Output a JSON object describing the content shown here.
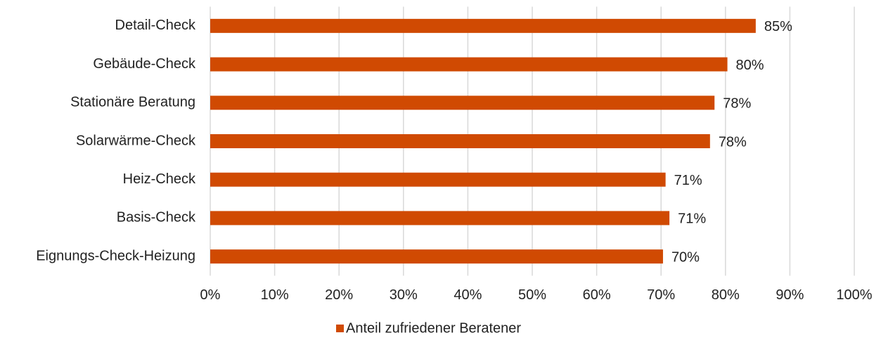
{
  "chart_data": {
    "type": "bar",
    "orientation": "horizontal",
    "categories": [
      "Detail-Check",
      "Gebäude-Check",
      "Stationäre Beratung",
      "Solarwärme-Check",
      "Heiz-Check",
      "Basis-Check",
      "Eignungs-Check-Heizung"
    ],
    "series": [
      {
        "name": "Anteil zufriedener Beratener",
        "color": "#d04a02",
        "values": [
          84.7,
          80.3,
          78.3,
          77.6,
          70.7,
          71.3,
          70.3
        ],
        "value_labels": [
          "85%",
          "80%",
          "78%",
          "78%",
          "71%",
          "71%",
          "70%"
        ]
      }
    ],
    "xlim": [
      0,
      100
    ],
    "xticks": [
      {
        "value": 0,
        "label": "0%"
      },
      {
        "value": 10,
        "label": "10%"
      },
      {
        "value": 20,
        "label": "20%"
      },
      {
        "value": 30,
        "label": "30%"
      },
      {
        "value": 40,
        "label": "40%"
      },
      {
        "value": 50,
        "label": "50%"
      },
      {
        "value": 60,
        "label": "60%"
      },
      {
        "value": 70,
        "label": "70%"
      },
      {
        "value": 80,
        "label": "80%"
      },
      {
        "value": 90,
        "label": "90%"
      },
      {
        "value": 100,
        "label": "100%"
      }
    ],
    "grid": true,
    "legend": "bottom"
  }
}
